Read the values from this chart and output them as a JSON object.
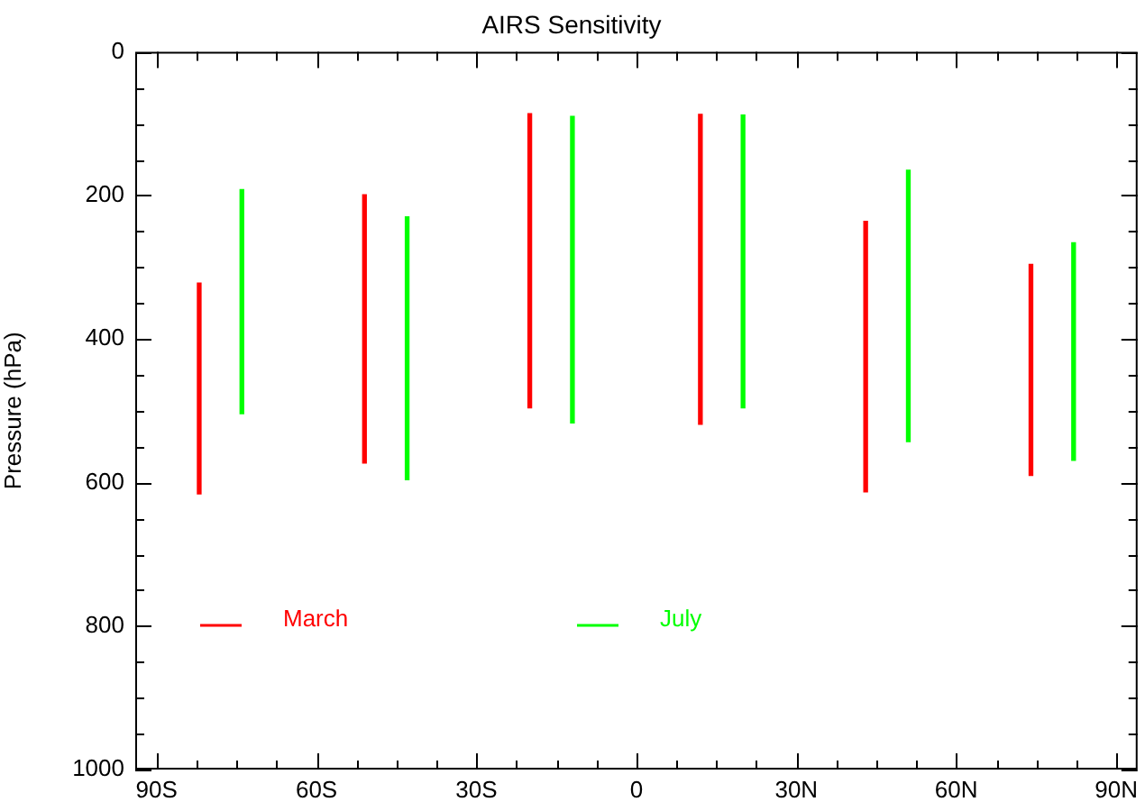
{
  "chart_data": {
    "type": "bar",
    "title": "AIRS Sensitivity",
    "ylabel": "Pressure (hPa)",
    "xlim": [
      -94,
      94
    ],
    "xticks": [
      {
        "value": -90,
        "label": "90S"
      },
      {
        "value": -82.5,
        "label": null
      },
      {
        "value": -75,
        "label": null
      },
      {
        "value": -67.5,
        "label": null
      },
      {
        "value": -60,
        "label": "60S"
      },
      {
        "value": -52.5,
        "label": null
      },
      {
        "value": -45,
        "label": null
      },
      {
        "value": -37.5,
        "label": null
      },
      {
        "value": -30,
        "label": "30S"
      },
      {
        "value": -22.5,
        "label": null
      },
      {
        "value": -15,
        "label": null
      },
      {
        "value": -7.5,
        "label": null
      },
      0,
      {
        "value": 7.5,
        "label": null
      },
      {
        "value": 15,
        "label": null
      },
      {
        "value": 22.5,
        "label": null
      },
      {
        "value": 30,
        "label": "30N"
      },
      {
        "value": 37.5,
        "label": null
      },
      {
        "value": 45,
        "label": null
      },
      {
        "value": 52.5,
        "label": null
      },
      {
        "value": 60,
        "label": "60N"
      },
      {
        "value": 67.5,
        "label": null
      },
      {
        "value": 75,
        "label": null
      },
      {
        "value": 82.5,
        "label": null
      },
      {
        "value": 90,
        "label": "90N"
      }
    ],
    "ylim": [
      1000,
      0
    ],
    "yticks": [
      0,
      {
        "value": 50,
        "label": null
      },
      {
        "value": 100,
        "label": null
      },
      {
        "value": 150,
        "label": null
      },
      200,
      {
        "value": 250,
        "label": null
      },
      {
        "value": 300,
        "label": null
      },
      {
        "value": 350,
        "label": null
      },
      400,
      {
        "value": 450,
        "label": null
      },
      {
        "value": 500,
        "label": null
      },
      {
        "value": 550,
        "label": null
      },
      600,
      {
        "value": 650,
        "label": null
      },
      {
        "value": 700,
        "label": null
      },
      {
        "value": 750,
        "label": null
      },
      800,
      {
        "value": 850,
        "label": null
      },
      {
        "value": 900,
        "label": null
      },
      {
        "value": 950,
        "label": null
      },
      1000
    ],
    "grid": false,
    "legend": "bottom left",
    "series": [
      {
        "name": "March",
        "color": "#ff0000",
        "x": [
          -82,
          -51,
          -20,
          12,
          43,
          74
        ],
        "base": [
          322,
          199,
          86,
          87,
          236,
          296
        ],
        "values": [
          294,
          374,
          410,
          432,
          377,
          294
        ]
      },
      {
        "name": "July",
        "color": "#00ff00",
        "x": [
          -74,
          -43,
          -12,
          20,
          51,
          82
        ],
        "base": [
          192,
          230,
          90,
          88,
          165,
          266
        ],
        "values": [
          312,
          366,
          427,
          408,
          378,
          303
        ]
      }
    ]
  }
}
